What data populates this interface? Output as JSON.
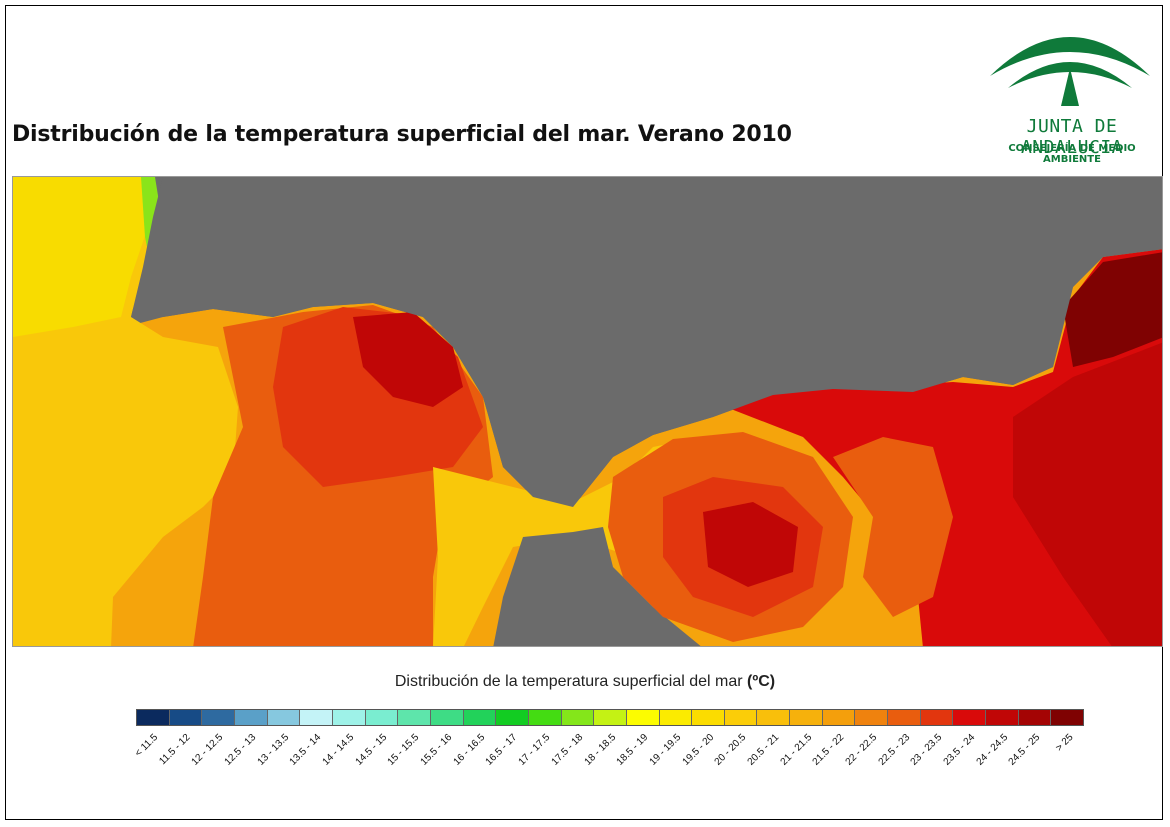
{
  "title": "Distribución de la temperatura superficial del mar. Verano 2010",
  "logo": {
    "name": "JUNTA DE ANDALUCIA",
    "subtitle": "CONSEJERÍA DE MEDIO AMBIENTE",
    "color": "#0f7a3a"
  },
  "map": {
    "land_color": "#6b6b6b"
  },
  "legend": {
    "title": "Distribución de la temperatura superficial del mar",
    "unit": "(ºC)",
    "classes": [
      {
        "label": "< 11.5",
        "color": "#0b2a5e"
      },
      {
        "label": "11.5 - 12",
        "color": "#174b86"
      },
      {
        "label": "12 - 12.5",
        "color": "#2e6aa0"
      },
      {
        "label": "12.5 - 13",
        "color": "#5aa0c8"
      },
      {
        "label": "13 - 13.5",
        "color": "#86c8df"
      },
      {
        "label": "13.5 - 14",
        "color": "#c4f3f7"
      },
      {
        "label": "14 - 14.5",
        "color": "#9ef2e8"
      },
      {
        "label": "14.5 - 15",
        "color": "#7aedd0"
      },
      {
        "label": "15 - 15.5",
        "color": "#5ee5ab"
      },
      {
        "label": "15.5 - 16",
        "color": "#3edc85"
      },
      {
        "label": "16 - 16.5",
        "color": "#22d25a"
      },
      {
        "label": "16.5 - 17",
        "color": "#12cc22"
      },
      {
        "label": "17 - 17.5",
        "color": "#44dc12"
      },
      {
        "label": "17.5 - 18",
        "color": "#84e61a"
      },
      {
        "label": "18 - 18.5",
        "color": "#c4f214"
      },
      {
        "label": "18.5 - 19",
        "color": "#fcfc00"
      },
      {
        "label": "19 - 19.5",
        "color": "#fbeb00"
      },
      {
        "label": "19.5 - 20",
        "color": "#fbdc00"
      },
      {
        "label": "20 - 20.5",
        "color": "#fbcd08"
      },
      {
        "label": "20.5 - 21",
        "color": "#f9bf0b"
      },
      {
        "label": "21 - 21.5",
        "color": "#f6b10c"
      },
      {
        "label": "21.5 - 22",
        "color": "#f49f0c"
      },
      {
        "label": "22 - 22.5",
        "color": "#ef820e"
      },
      {
        "label": "22.5 - 23",
        "color": "#e95d0e"
      },
      {
        "label": "23 - 23.5",
        "color": "#e2360e"
      },
      {
        "label": "23.5 - 24",
        "color": "#d90a0a"
      },
      {
        "label": "24 - 24.5",
        "color": "#c00606"
      },
      {
        "label": "24.5 - 25",
        "color": "#a40404"
      },
      {
        "label": "> 25",
        "color": "#7f0202"
      }
    ]
  }
}
